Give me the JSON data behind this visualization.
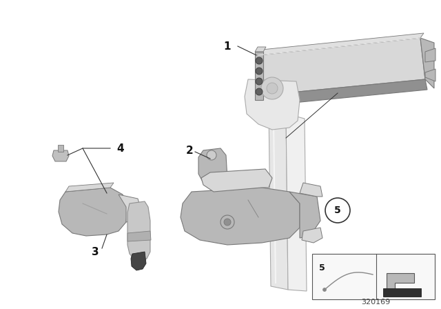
{
  "bg_color": "#ffffff",
  "fig_width": 6.4,
  "fig_height": 4.48,
  "dpi": 100,
  "part_number": "320169",
  "silver_light": "#d8d8d8",
  "silver_mid": "#b8b8b8",
  "silver_dark": "#909090",
  "silver_edge": "#787878",
  "white_part": "#e8e8e8",
  "white_edge": "#aaaaaa",
  "label_color": "#111111",
  "line_color": "#333333"
}
